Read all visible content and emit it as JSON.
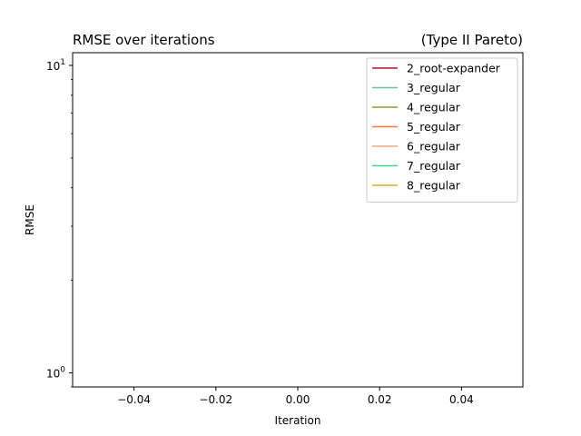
{
  "chart_data": {
    "type": "line",
    "title": "RMSE over iterations",
    "subtitle": "(Type II Pareto)",
    "xlabel": "Iteration",
    "ylabel": "RMSE",
    "xlim": [
      -0.055,
      0.055
    ],
    "ylim": [
      0.9,
      11
    ],
    "yscale": "log",
    "x_ticks": [
      -0.04,
      -0.02,
      0.0,
      0.02,
      0.04
    ],
    "x_tick_labels": [
      "−0.04",
      "−0.02",
      "0.00",
      "0.02",
      "0.04"
    ],
    "y_ticks": [
      1,
      10
    ],
    "y_tick_base": "10",
    "y_tick_exponents": [
      "0",
      "1"
    ],
    "grid": false,
    "legend": {
      "placement": "top-right",
      "entries": [
        {
          "name": "2_root-expander",
          "color": "#b2182b"
        },
        {
          "name": "3_regular",
          "color": "#66c2a5"
        },
        {
          "name": "4_regular",
          "color": "#8c9e3a"
        },
        {
          "name": "5_regular",
          "color": "#f57c46"
        },
        {
          "name": "6_regular",
          "color": "#f4a582"
        },
        {
          "name": "7_regular",
          "color": "#3ddc84"
        },
        {
          "name": "8_regular",
          "color": "#d4b21a"
        }
      ]
    },
    "series": [
      {
        "name": "2_root-expander",
        "x": [],
        "values": []
      },
      {
        "name": "3_regular",
        "x": [],
        "values": []
      },
      {
        "name": "4_regular",
        "x": [],
        "values": []
      },
      {
        "name": "5_regular",
        "x": [],
        "values": []
      },
      {
        "name": "6_regular",
        "x": [],
        "values": []
      },
      {
        "name": "7_regular",
        "x": [],
        "values": []
      },
      {
        "name": "8_regular",
        "x": [],
        "values": []
      }
    ]
  }
}
